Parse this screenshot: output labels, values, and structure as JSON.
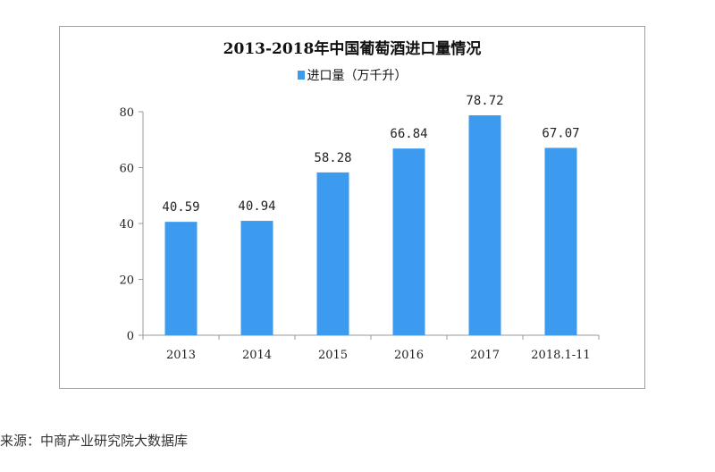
{
  "chart_data": {
    "type": "bar",
    "title": "2013-2018年中国葡萄酒进口量情况",
    "categories": [
      "2013",
      "2014",
      "2015",
      "2016",
      "2017",
      "2018.1-11"
    ],
    "series": [
      {
        "name": "进口量（万千升）",
        "values": [
          40.59,
          40.94,
          58.28,
          66.84,
          78.72,
          67.07
        ],
        "color": "#3d9bef"
      }
    ],
    "data_labels": [
      "40.59",
      "40.94",
      "58.28",
      "66.84",
      "78.72",
      "67.07"
    ],
    "ylim": [
      0,
      80
    ],
    "yticks": [
      0,
      20,
      40,
      60,
      80
    ],
    "grid": false,
    "legend": "top"
  },
  "source": "来源：中商产业研究院大数据库"
}
